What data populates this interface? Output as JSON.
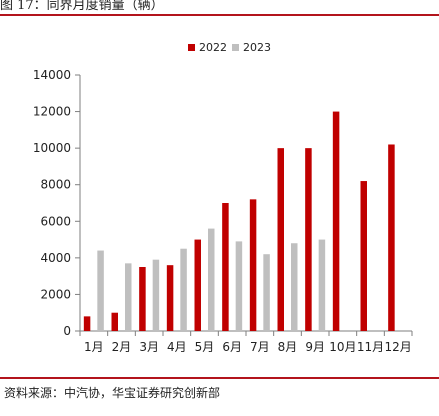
{
  "figure": {
    "title": "图 17：同界月度销量（辆）",
    "source": "资料来源：中汽协，华宝证券研究创新部"
  },
  "colors": {
    "series_2022": "#c00000",
    "series_2023": "#bfbfbf",
    "rule": "#b3141c"
  },
  "chart_data": {
    "type": "bar",
    "title": "",
    "xlabel": "",
    "ylabel": "",
    "categories": [
      "1月",
      "2月",
      "3月",
      "4月",
      "5月",
      "6月",
      "7月",
      "8月",
      "9月",
      "10月",
      "11月",
      "12月"
    ],
    "series": [
      {
        "name": "2022",
        "values": [
          800,
          1000,
          3500,
          3600,
          5000,
          7000,
          7200,
          10000,
          10000,
          12000,
          8200,
          10200
        ]
      },
      {
        "name": "2023",
        "values": [
          4400,
          3700,
          3900,
          4500,
          5600,
          4900,
          4200,
          4800,
          5000,
          null,
          null,
          null
        ]
      }
    ],
    "ylim": [
      0,
      14000
    ],
    "yticks": [
      0,
      2000,
      4000,
      6000,
      8000,
      10000,
      12000,
      14000
    ],
    "grid": false,
    "legend_position": "top-center"
  }
}
